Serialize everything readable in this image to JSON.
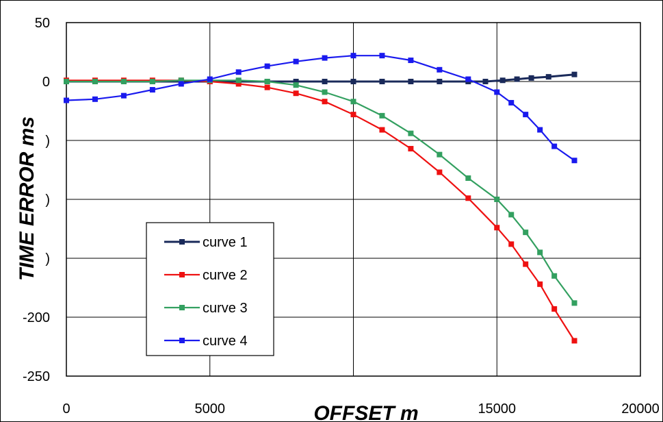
{
  "chart_data": {
    "type": "line",
    "title": "",
    "xlabel": "OFFSET m",
    "ylabel": "TIME ERROR ms",
    "xlim": [
      0,
      20000
    ],
    "ylim": [
      -250,
      50
    ],
    "xticks": [
      0,
      5000,
      10000,
      15000,
      20000
    ],
    "xtick_labels": [
      "0",
      "5000",
      "",
      "15000",
      "20000"
    ],
    "yticks": [
      50,
      0,
      -50,
      -100,
      -150,
      -200,
      -250
    ],
    "ytick_labels": [
      "50",
      "0",
      ")",
      ")",
      ")",
      "-200",
      "-250"
    ],
    "grid": true,
    "legend_position": "lower-left",
    "series": [
      {
        "name": "curve 1",
        "color": "#1a2a5a",
        "x": [
          0,
          1000,
          2000,
          3000,
          4000,
          5000,
          6000,
          7000,
          8000,
          9000,
          10000,
          11000,
          12000,
          13000,
          14000,
          14600,
          15200,
          15700,
          16200,
          16800,
          17700
        ],
        "y": [
          0,
          0,
          0,
          0,
          0,
          0,
          0,
          0,
          0,
          0,
          0,
          0,
          0,
          0,
          0,
          0,
          1,
          2,
          3,
          4,
          6
        ]
      },
      {
        "name": "curve 2",
        "color": "#ee1111",
        "x": [
          0,
          1000,
          2000,
          3000,
          4000,
          5000,
          6000,
          7000,
          8000,
          9000,
          10000,
          11000,
          12000,
          13000,
          14000,
          15000,
          15500,
          16000,
          16500,
          17000,
          17700
        ],
        "y": [
          1,
          1,
          1,
          1,
          1,
          0,
          -2,
          -5,
          -10,
          -17,
          -28,
          -41,
          -57,
          -77,
          -99,
          -124,
          -138,
          -155,
          -172,
          -193,
          -220
        ]
      },
      {
        "name": "curve 3",
        "color": "#33a060",
        "x": [
          0,
          1000,
          2000,
          3000,
          4000,
          5000,
          6000,
          7000,
          8000,
          9000,
          10000,
          11000,
          12000,
          13000,
          14000,
          15000,
          15500,
          16000,
          16500,
          17000,
          17700
        ],
        "y": [
          0,
          0,
          0,
          0,
          1,
          1,
          1,
          0,
          -3,
          -9,
          -17,
          -29,
          -44,
          -62,
          -82,
          -100,
          -113,
          -128,
          -145,
          -165,
          -188
        ]
      },
      {
        "name": "curve 4",
        "color": "#1a1aee",
        "x": [
          0,
          1000,
          2000,
          3000,
          4000,
          5000,
          6000,
          7000,
          8000,
          9000,
          10000,
          11000,
          12000,
          13000,
          14000,
          15000,
          15500,
          16000,
          16500,
          17000,
          17700
        ],
        "y": [
          -16,
          -15,
          -12,
          -7,
          -2,
          2,
          8,
          13,
          17,
          20,
          22,
          22,
          18,
          10,
          2,
          -9,
          -18,
          -28,
          -41,
          -55,
          -67
        ]
      }
    ]
  }
}
